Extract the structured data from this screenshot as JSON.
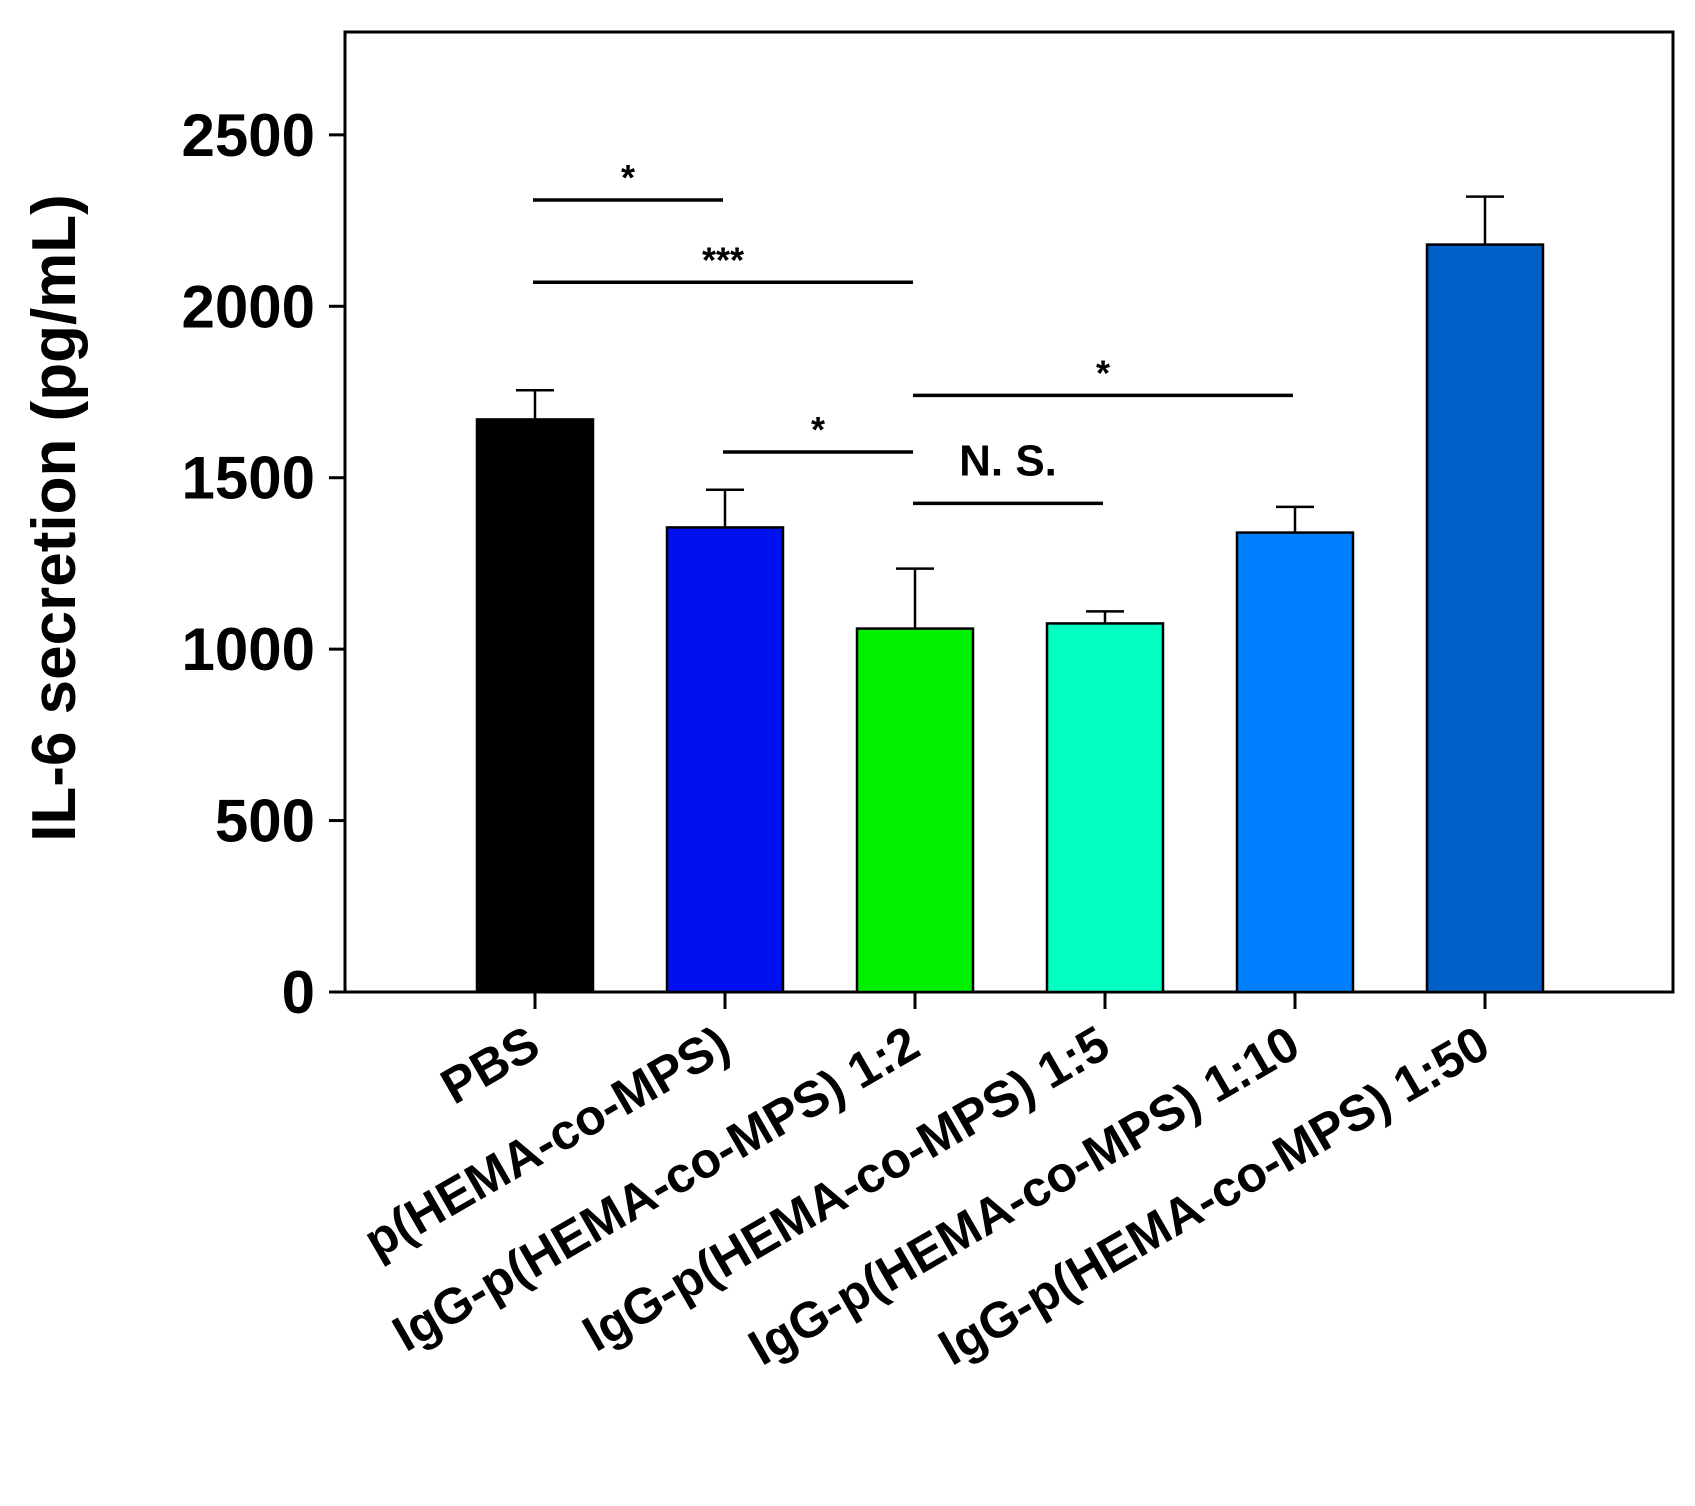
{
  "chart_data": {
    "type": "bar",
    "title": "",
    "xlabel": "",
    "ylabel": "IL-6 secretion (pg/mL)",
    "ylim": [
      0,
      2800
    ],
    "yticks": [
      0,
      500,
      1000,
      1500,
      2000,
      2500
    ],
    "grid": false,
    "legend": "none",
    "categories": [
      "PBS",
      "p(HEMA-co-MPS)",
      "IgG-p(HEMA-co-MPS) 1:2",
      "IgG-p(HEMA-co-MPS) 1:5",
      "IgG-p(HEMA-co-MPS) 1:10",
      "IgG-p(HEMA-co-MPS) 1:50"
    ],
    "values": [
      1670,
      1355,
      1060,
      1075,
      1340,
      2180
    ],
    "errors": [
      85,
      110,
      175,
      35,
      75,
      140
    ],
    "colors": [
      "#000000",
      "#0010ee",
      "#00f000",
      "#00ffc0",
      "#0080ff",
      "#0060c8"
    ],
    "significance": [
      {
        "from": 0,
        "to": 1,
        "y": 2310,
        "label": "*"
      },
      {
        "from": 0,
        "to": 2,
        "y": 2070,
        "label": "***"
      },
      {
        "from": 1,
        "to": 2,
        "y": 1575,
        "label": "*"
      },
      {
        "from": 2,
        "to": 3,
        "y": 1425,
        "label": "N. S."
      },
      {
        "from": 2,
        "to": 4,
        "y": 1740,
        "label": "*"
      }
    ]
  }
}
